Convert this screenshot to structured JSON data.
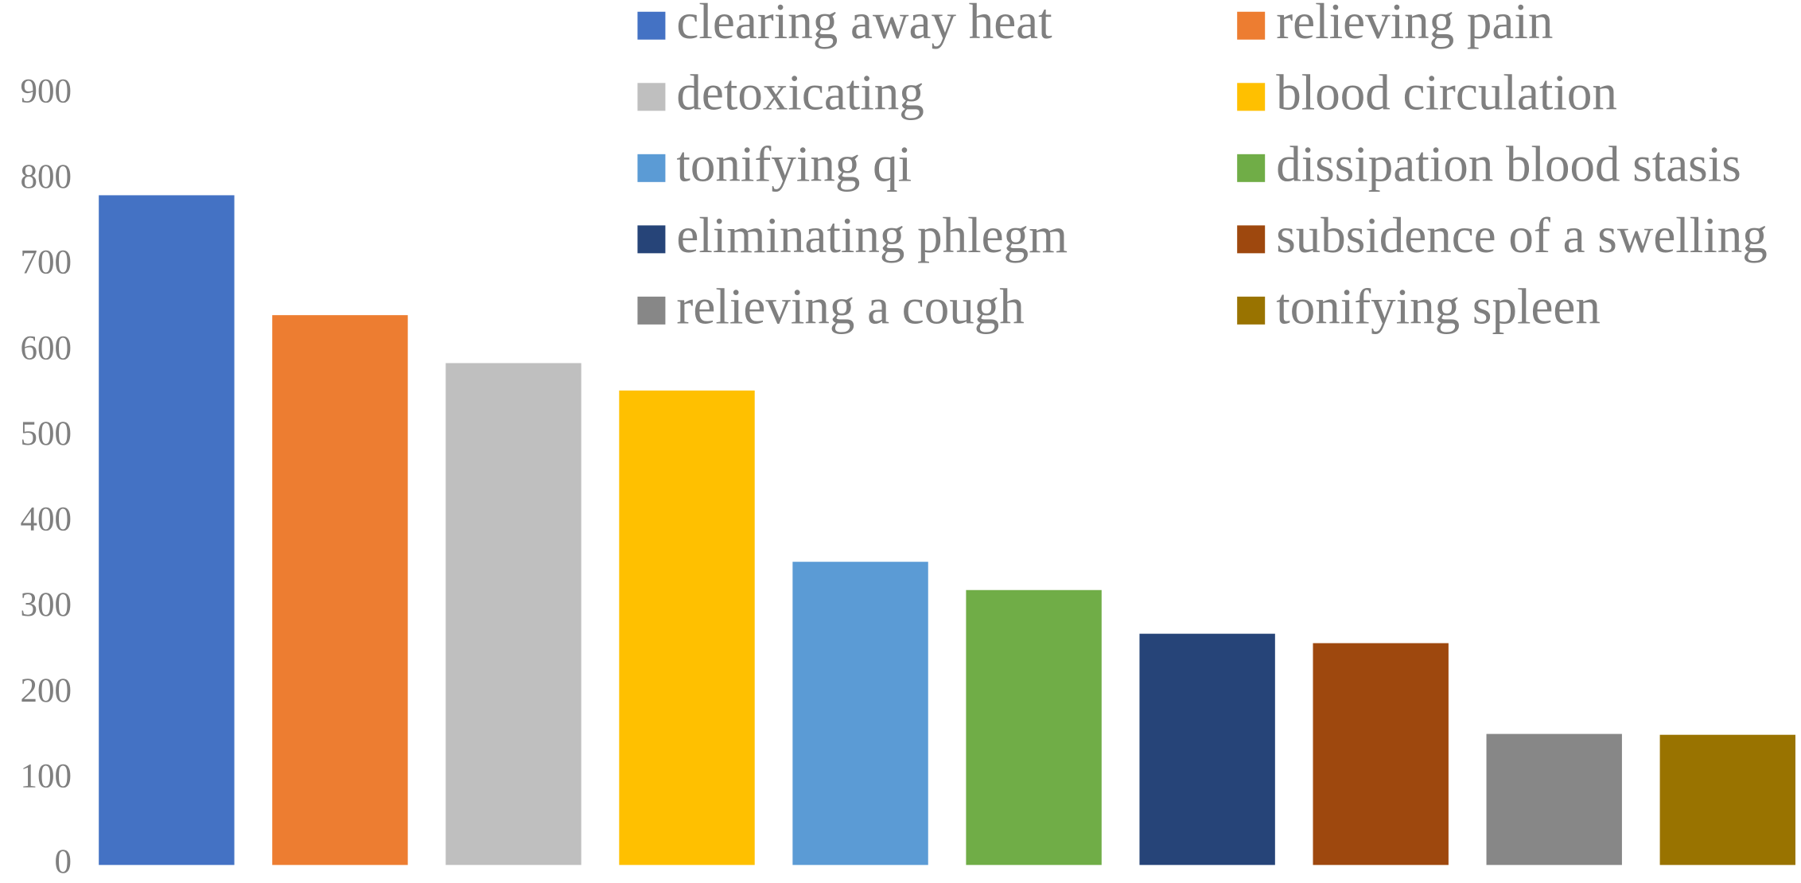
{
  "chart_data": {
    "type": "bar",
    "categories": [
      "clearing away heat",
      "relieving pain",
      "detoxicating",
      "blood circulation",
      "tonifying qi",
      "dissipation blood stasis",
      "eliminating phlegm",
      "subsidence of a swelling",
      "relieving a cough",
      "tonifying spleen"
    ],
    "values": [
      782,
      642,
      586,
      554,
      354,
      321,
      270,
      259,
      153,
      152
    ],
    "colors": [
      "#4472c4",
      "#ed7d31",
      "#bfbfbf",
      "#ffc000",
      "#5b9bd5",
      "#70ad47",
      "#264478",
      "#9e480e",
      "#878787",
      "#997300"
    ],
    "ylim": [
      0,
      900
    ],
    "yticks": [
      0,
      100,
      200,
      300,
      400,
      500,
      600,
      700,
      800,
      900
    ],
    "grid": false,
    "legend": "top-right"
  }
}
